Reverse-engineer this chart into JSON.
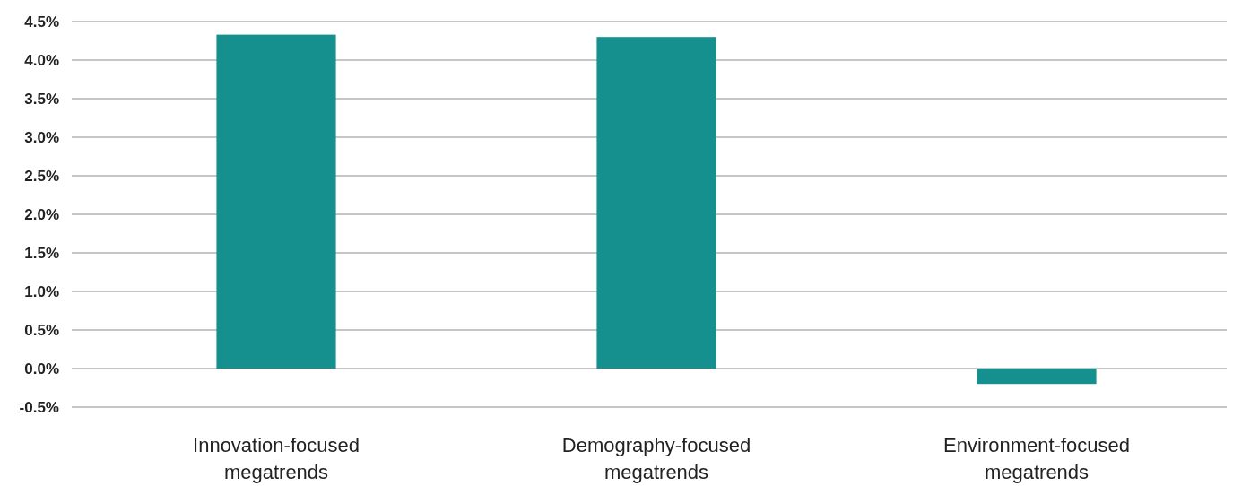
{
  "chart_data": {
    "type": "bar",
    "categories": [
      "Innovation-focused megatrends",
      "Demography-focused megatrends",
      "Environment-focused megatrends"
    ],
    "values": [
      4.33,
      4.3,
      -0.2
    ],
    "color": "#168f8f",
    "ylim": [
      -0.5,
      4.5
    ],
    "yticks": [
      {
        "value": -0.5,
        "label": "-0.5%"
      },
      {
        "value": 0,
        "label": "0.0%"
      },
      {
        "value": 0.5,
        "label": "0.5%"
      },
      {
        "value": 1,
        "label": "1.0%"
      },
      {
        "value": 1.5,
        "label": "1.5%"
      },
      {
        "value": 2,
        "label": "2.0%"
      },
      {
        "value": 2.5,
        "label": "2.5%"
      },
      {
        "value": 3,
        "label": "3.0%"
      },
      {
        "value": 3.5,
        "label": "3.5%"
      },
      {
        "value": 4,
        "label": "4.0%"
      },
      {
        "value": 4.5,
        "label": "4.5%"
      }
    ],
    "grid": "y"
  }
}
